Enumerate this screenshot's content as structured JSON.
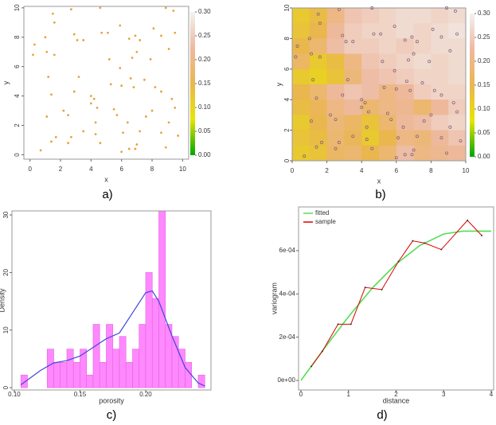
{
  "chart_data": [
    {
      "type": "scatter",
      "caption": "a)",
      "xlabel": "x",
      "ylabel": "y",
      "color": "#e8a33c",
      "x": [
        1.5,
        2.7,
        4.6,
        8.9,
        9.4,
        0.3,
        0.2,
        1,
        1.1,
        1.6,
        1.6,
        2.9,
        3.1,
        3.5,
        5.1,
        5.9,
        6.5,
        6.9,
        7.2,
        8.1,
        8.6,
        9.5,
        9.1,
        7,
        6.7,
        7.9,
        5.2,
        3.2,
        1.2,
        1.4,
        2.9,
        4,
        4.2,
        4,
        4.4,
        5.3,
        6,
        6.8,
        6.6,
        7.5,
        8.2,
        8.6,
        9.3,
        9.5,
        9.1,
        8.6,
        9.7,
        8.9,
        7,
        6.9,
        6.5,
        7.2,
        6.4,
        6.1,
        5.7,
        5.5,
        4.3,
        4.3,
        4.6,
        3.5,
        2.7,
        2.5,
        1.7,
        1.4,
        0.7,
        1.1,
        2.5,
        2.2,
        6,
        8,
        7.6,
        5.9,
        4.7
      ],
      "y": [
        9.6,
        9.9,
        10,
        10,
        9.8,
        7.5,
        6.8,
        8,
        7,
        6.8,
        9,
        8.2,
        7.8,
        7.8,
        8.3,
        8.8,
        7.9,
        8.1,
        7.8,
        8.6,
        8.1,
        8.3,
        7.2,
        7,
        6.6,
        6.5,
        6.5,
        5.3,
        5.3,
        4.1,
        4.3,
        4,
        3.8,
        3.5,
        3.2,
        4.8,
        4.7,
        4.6,
        5.2,
        5.1,
        4.6,
        4.3,
        3.8,
        3.2,
        2.2,
        1.5,
        1.3,
        0.5,
        0.7,
        0.4,
        0.4,
        1.6,
        2.2,
        1.5,
        2.7,
        3.1,
        2.2,
        1.4,
        0.8,
        1.6,
        1.2,
        0.8,
        1.2,
        0.9,
        0.3,
        2.6,
        2.7,
        3,
        0.2,
        3,
        2.6,
        5.9,
        8.3
      ],
      "xlim": [
        -0.4,
        10.4
      ],
      "ylim": [
        -0.3,
        10.1
      ],
      "xticks": [
        0,
        2,
        4,
        6,
        8,
        10
      ],
      "yticks": [
        0,
        2,
        4,
        6,
        8,
        10
      ],
      "zlim": [
        0,
        0.3
      ],
      "zticks": [
        {
          "value": 0,
          "label": "0.00"
        },
        {
          "value": 0.05,
          "label": "0.05"
        },
        {
          "value": 0.1,
          "label": "0.10"
        },
        {
          "value": 0.15,
          "label": "0.15"
        },
        {
          "value": 0.2,
          "label": "0.20"
        },
        {
          "value": 0.25,
          "label": "0.25"
        },
        {
          "value": 0.3,
          "label": "0.30"
        }
      ],
      "colorscale": [
        "#00a600",
        "#e6e600",
        "#eab64e",
        "#eeb99f",
        "#f2f2f2"
      ]
    },
    {
      "type": "heatmap",
      "caption": "b)",
      "xlabel": "x",
      "ylabel": "y",
      "point_color": "#7a5a7a",
      "z": [
        [
          0.12,
          0.14,
          0.2,
          0.24,
          0.25,
          0.26,
          0.27,
          0.27,
          0.26,
          0.27
        ],
        [
          0.13,
          0.15,
          0.22,
          0.25,
          0.26,
          0.26,
          0.27,
          0.26,
          0.27,
          0.28
        ],
        [
          0.15,
          0.18,
          0.23,
          0.25,
          0.25,
          0.26,
          0.25,
          0.26,
          0.27,
          0.27
        ],
        [
          0.17,
          0.12,
          0.14,
          0.2,
          0.24,
          0.25,
          0.26,
          0.27,
          0.26,
          0.27
        ],
        [
          0.12,
          0.11,
          0.13,
          0.19,
          0.23,
          0.24,
          0.25,
          0.26,
          0.26,
          0.27
        ],
        [
          0.15,
          0.18,
          0.22,
          0.24,
          0.23,
          0.2,
          0.22,
          0.25,
          0.26,
          0.26
        ],
        [
          0.14,
          0.16,
          0.2,
          0.22,
          0.18,
          0.2,
          0.21,
          0.18,
          0.22,
          0.25
        ],
        [
          0.12,
          0.15,
          0.19,
          0.17,
          0.13,
          0.18,
          0.22,
          0.23,
          0.25,
          0.26
        ],
        [
          0.13,
          0.14,
          0.18,
          0.16,
          0.12,
          0.15,
          0.2,
          0.19,
          0.22,
          0.24
        ],
        [
          0.12,
          0.13,
          0.17,
          0.18,
          0.15,
          0.18,
          0.23,
          0.2,
          0.21,
          0.22
        ]
      ],
      "xlim": [
        0,
        10
      ],
      "ylim": [
        0,
        10
      ],
      "xticks": [
        0,
        2,
        4,
        6,
        8,
        10
      ],
      "yticks": [
        0,
        2,
        4,
        6,
        8,
        10
      ],
      "zlim": [
        0,
        0.3
      ],
      "zticks": [
        {
          "value": 0,
          "label": "0.00"
        },
        {
          "value": 0.05,
          "label": "0.05"
        },
        {
          "value": 0.1,
          "label": "0.10"
        },
        {
          "value": 0.15,
          "label": "0.15"
        },
        {
          "value": 0.2,
          "label": "0.20"
        },
        {
          "value": 0.25,
          "label": "0.25"
        },
        {
          "value": 0.3,
          "label": "0.30"
        }
      ],
      "colorscale": [
        "#00a600",
        "#e6e600",
        "#eab64e",
        "#eeb99f",
        "#f2f2f2"
      ]
    },
    {
      "type": "histogram",
      "caption": "c)",
      "xlabel": "porosity",
      "ylabel": "Density",
      "color": "#ff88ff",
      "bins": [
        0.105,
        0.11,
        0.115,
        0.12,
        0.125,
        0.13,
        0.135,
        0.14,
        0.145,
        0.15,
        0.155,
        0.16,
        0.165,
        0.17,
        0.175,
        0.18,
        0.185,
        0.19,
        0.195,
        0.2,
        0.205,
        0.21,
        0.215,
        0.22,
        0.225,
        0.23,
        0.235,
        0.24,
        0.245
      ],
      "values": [
        2.2,
        0,
        0,
        0,
        6.7,
        4.4,
        4.4,
        6.7,
        4.4,
        6.7,
        2.2,
        11,
        4.4,
        11,
        6.7,
        8.9,
        4.4,
        6.7,
        11,
        20,
        15.5,
        31,
        11,
        8.9,
        6.7,
        4.4,
        0,
        2.2
      ],
      "density": {
        "color": "#4444dd",
        "x": [
          0.105,
          0.12,
          0.13,
          0.14,
          0.15,
          0.16,
          0.17,
          0.18,
          0.19,
          0.2,
          0.205,
          0.21,
          0.22,
          0.23,
          0.24,
          0.245
        ],
        "y": [
          0.5,
          3,
          4.3,
          4.7,
          5.5,
          7,
          8.5,
          9.5,
          13,
          16.5,
          16.8,
          15,
          9,
          3.5,
          0.8,
          0.3
        ]
      },
      "xlim": [
        0.0982,
        0.2497
      ],
      "ylim": [
        -0.4,
        30.7
      ],
      "xticks": [
        {
          "value": 0.1,
          "label": "0.10"
        },
        0.15,
        {
          "value": 0.2,
          "label": "0.20"
        }
      ],
      "yticks": [
        0,
        10,
        20,
        30
      ]
    },
    {
      "type": "line",
      "caption": "d)",
      "xlabel": "distance",
      "ylabel": "variogram",
      "legend": "top-left",
      "series": [
        {
          "name": "fitted",
          "color": "#55dd55",
          "x": [
            0,
            0.5,
            1,
            1.5,
            2,
            2.5,
            3,
            3.4,
            4
          ],
          "values": [
            0,
            0.000151,
            0.000295,
            0.000427,
            0.000538,
            0.000624,
            0.000677,
            0.00069,
            0.00069
          ]
        },
        {
          "name": "sample",
          "color": "#dd0000",
          "x": [
            0.22,
            0.45,
            0.78,
            1.05,
            1.35,
            1.7,
            2.05,
            2.35,
            2.6,
            2.95,
            3.5,
            3.8
          ],
          "values": [
            6.5e-05,
            0.000135,
            0.00026,
            0.00026,
            0.00043,
            0.00042,
            0.00055,
            0.000645,
            0.000635,
            0.000605,
            0.00074,
            0.00067
          ]
        }
      ],
      "xlim": [
        -0.05,
        4.05
      ],
      "ylim": [
        -4.4e-05,
        0.000802
      ],
      "xticks": [
        0,
        1,
        2,
        3,
        4
      ],
      "yticks": [
        {
          "value": 0,
          "label": "0e+00"
        },
        {
          "value": 0.0002,
          "label": "2e-04"
        },
        {
          "value": 0.0004,
          "label": "4e-04"
        },
        {
          "value": 0.0006,
          "label": "6e-04"
        }
      ]
    }
  ]
}
